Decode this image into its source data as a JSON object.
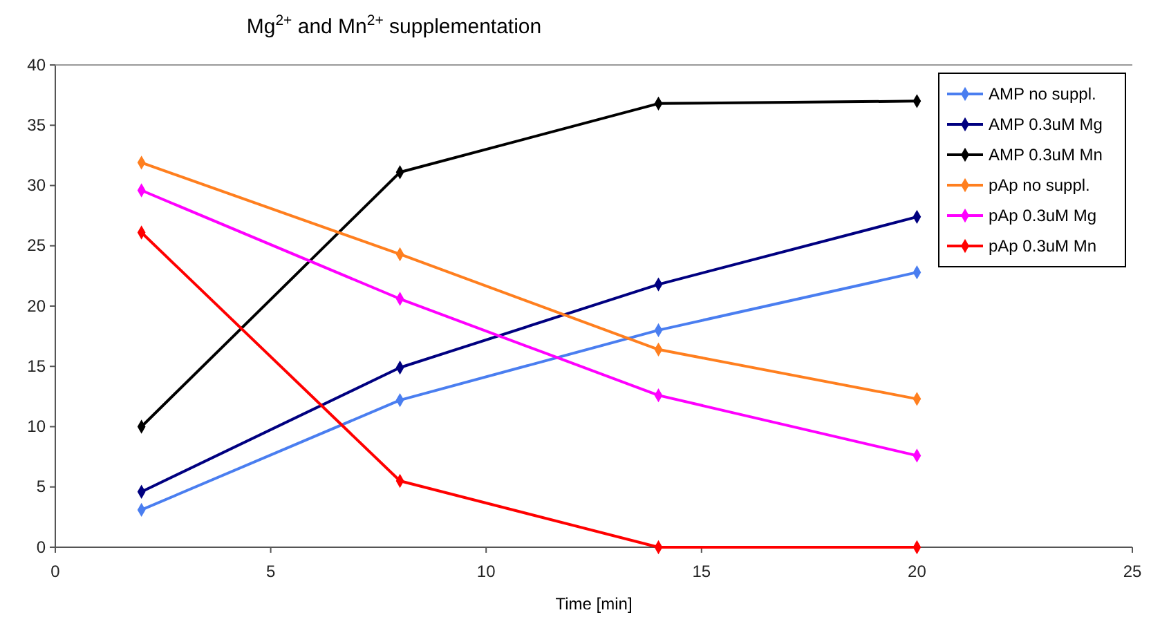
{
  "chart_data": {
    "type": "line",
    "title": "Mg$^{2+}$ and Mn$^{2+}$ supplementation",
    "xlabel": "Time [min]",
    "x": [
      2,
      8,
      14,
      20
    ],
    "xlim": [
      0,
      25
    ],
    "xticks": [
      0,
      5,
      10,
      15,
      20,
      25
    ],
    "ylim": [
      0,
      40
    ],
    "yticks": [
      0,
      5,
      10,
      15,
      20,
      25,
      30,
      35,
      40
    ],
    "grid": false,
    "legend": "top right",
    "marker": "diamond",
    "line_style": "solid",
    "series": [
      {
        "name": "AMP no suppl.",
        "color": "#4a7ef0",
        "values": [
          3.1,
          12.2,
          18.0,
          22.8
        ]
      },
      {
        "name": "AMP 0.3uM Mg",
        "color": "#000080",
        "values": [
          4.6,
          14.9,
          21.8,
          27.4
        ]
      },
      {
        "name": "AMP 0.3uM Mn",
        "color": "#000000",
        "values": [
          10.0,
          31.1,
          36.8,
          37.0
        ]
      },
      {
        "name": "pAp no suppl.",
        "color": "#ff7f1f",
        "values": [
          31.9,
          24.3,
          16.4,
          12.3
        ]
      },
      {
        "name": "pAp 0.3uM Mg",
        "color": "#ff00ff",
        "values": [
          29.6,
          20.6,
          12.6,
          7.6
        ]
      },
      {
        "name": "pAp 0.3uM Mn",
        "color": "#ff0000",
        "values": [
          26.1,
          5.5,
          0,
          0
        ]
      }
    ]
  }
}
